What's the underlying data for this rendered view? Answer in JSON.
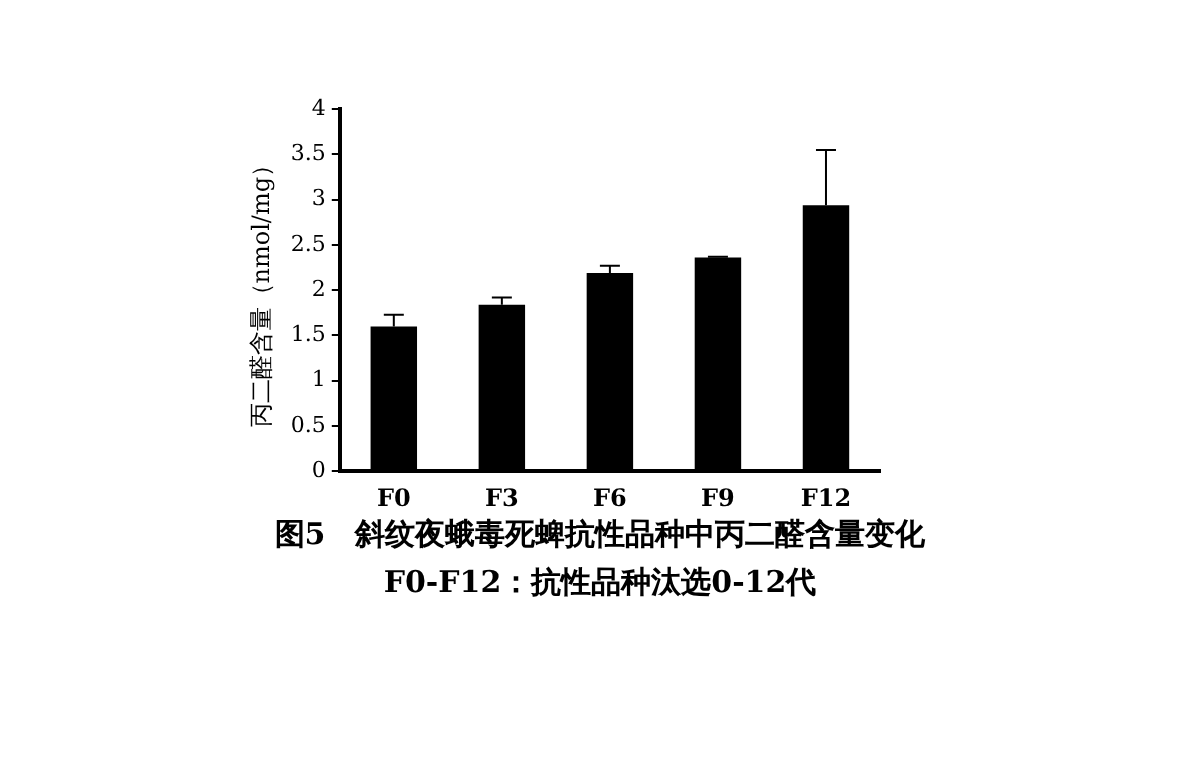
{
  "chart_data": {
    "type": "bar",
    "title": "图5　斜纹夜蛾毒死蜱抗性品种中丙二醛含量变化",
    "subtitle": "F0-F12：抗性品种汰选0-12代",
    "ylabel": "丙二醛含量（nmol/mg）",
    "categories": [
      "F0",
      "F3",
      "F6",
      "F9",
      "F12"
    ],
    "values": [
      1.6,
      1.84,
      2.19,
      2.36,
      2.94
    ],
    "errors": [
      [
        1.6,
        1.73
      ],
      [
        1.84,
        1.92
      ],
      [
        2.19,
        2.27
      ],
      [
        2.36,
        2.37
      ],
      [
        2.94,
        3.55
      ]
    ],
    "color": "#000000",
    "ylim": [
      0,
      4
    ],
    "yticks": [
      0,
      0.5,
      1,
      1.5,
      2,
      2.5,
      3,
      3.5,
      4
    ],
    "grid": false,
    "legend": false
  }
}
